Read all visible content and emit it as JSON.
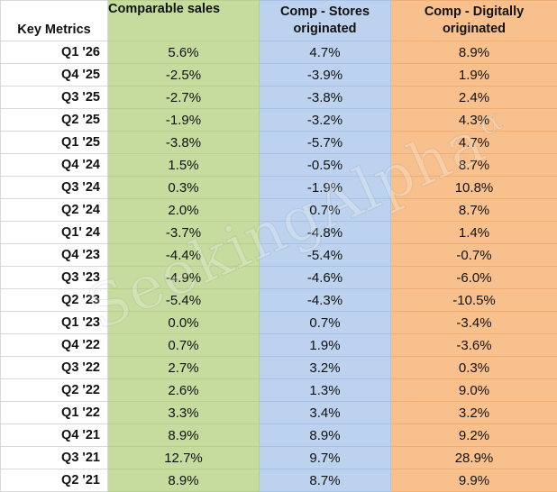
{
  "table": {
    "headers": {
      "label": "Key Metrics",
      "comp": "Comparable sales",
      "stores": "Comp - Stores originated",
      "digital": "Comp - Digitally originated"
    },
    "rows": [
      {
        "label": "Q1 '26",
        "comp": "5.6%",
        "stores": "4.7%",
        "digital": "8.9%"
      },
      {
        "label": "Q4 '25",
        "comp": "-2.5%",
        "stores": "-3.9%",
        "digital": "1.9%"
      },
      {
        "label": "Q3 '25",
        "comp": "-2.7%",
        "stores": "-3.8%",
        "digital": "2.4%"
      },
      {
        "label": "Q2 '25",
        "comp": "-1.9%",
        "stores": "-3.2%",
        "digital": "4.3%"
      },
      {
        "label": "Q1 '25",
        "comp": "-3.8%",
        "stores": "-5.7%",
        "digital": "4.7%"
      },
      {
        "label": "Q4 '24",
        "comp": "1.5%",
        "stores": "-0.5%",
        "digital": "8.7%"
      },
      {
        "label": "Q3 '24",
        "comp": "0.3%",
        "stores": "-1.9%",
        "digital": "10.8%"
      },
      {
        "label": "Q2 '24",
        "comp": "2.0%",
        "stores": "0.7%",
        "digital": "8.7%"
      },
      {
        "label": "Q1' 24",
        "comp": "-3.7%",
        "stores": "-4.8%",
        "digital": "1.4%"
      },
      {
        "label": "Q4 '23",
        "comp": "-4.4%",
        "stores": "-5.4%",
        "digital": "-0.7%"
      },
      {
        "label": "Q3 '23",
        "comp": "-4.9%",
        "stores": "-4.6%",
        "digital": "-6.0%"
      },
      {
        "label": "Q2 '23",
        "comp": "-5.4%",
        "stores": "-4.3%",
        "digital": "-10.5%"
      },
      {
        "label": "Q1 '23",
        "comp": "0.0%",
        "stores": "0.7%",
        "digital": "-3.4%"
      },
      {
        "label": "Q4 '22",
        "comp": "0.7%",
        "stores": "1.9%",
        "digital": "-3.6%"
      },
      {
        "label": "Q3 '22",
        "comp": "2.7%",
        "stores": "3.2%",
        "digital": "0.3%"
      },
      {
        "label": "Q2 '22",
        "comp": "2.6%",
        "stores": "1.3%",
        "digital": "9.0%"
      },
      {
        "label": "Q1 '22",
        "comp": "3.3%",
        "stores": "3.4%",
        "digital": "3.2%"
      },
      {
        "label": "Q4 '21",
        "comp": "8.9%",
        "stores": "8.9%",
        "digital": "9.2%"
      },
      {
        "label": "Q3 '21",
        "comp": "12.7%",
        "stores": "9.7%",
        "digital": "28.9%"
      },
      {
        "label": "Q2 '21",
        "comp": "8.9%",
        "stores": "8.7%",
        "digital": "9.9%"
      }
    ]
  },
  "watermark": {
    "text": "SeekingAlpha",
    "mark": "α"
  },
  "colors": {
    "comp_bg": "#c6dc9e",
    "stores_bg": "#bcd2ee",
    "digital_bg": "#f8c08c"
  }
}
